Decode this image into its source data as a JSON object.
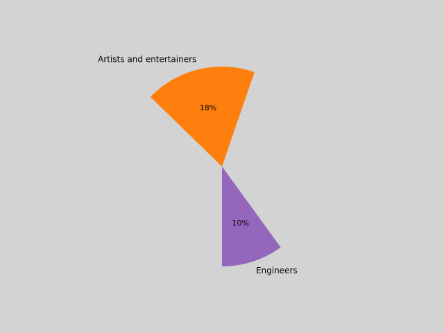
{
  "chart_data": {
    "type": "pie",
    "title": "",
    "slices": [
      {
        "label": "Artists and entertainers",
        "value": 18,
        "value_label": "18%",
        "color": "#ff7f0e"
      },
      {
        "label": "Engineers",
        "value": 10,
        "value_label": "10%",
        "color": "#9467bd"
      }
    ],
    "legend": "none",
    "background": "#d3d3d3"
  }
}
